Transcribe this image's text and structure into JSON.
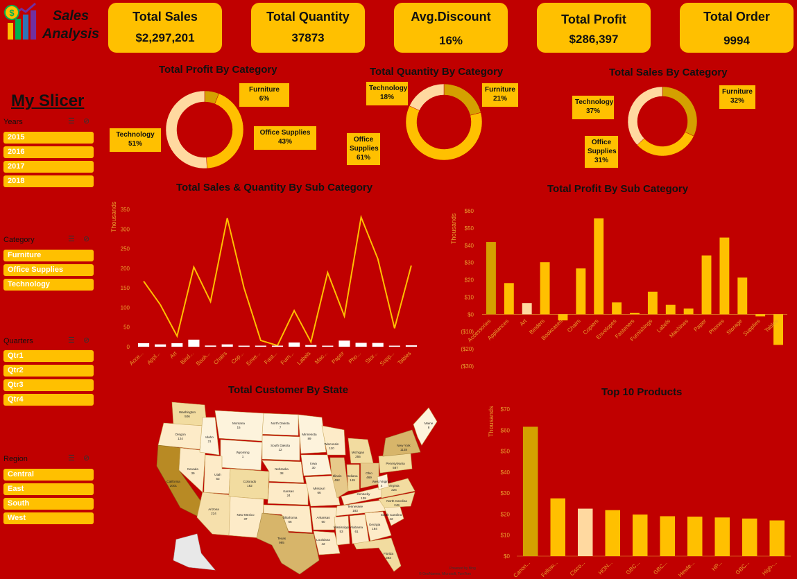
{
  "brand": {
    "line1": "Sales",
    "line2": "Analysis"
  },
  "kpis": [
    {
      "title": "Total Sales",
      "value": "$2,297,201"
    },
    {
      "title": "Total Quantity",
      "value": "37873"
    },
    {
      "title": "Avg.Discount",
      "value": "16%"
    },
    {
      "title": "Total Profit",
      "value": "$286,397"
    },
    {
      "title": "Total Order",
      "value": "9994"
    }
  ],
  "slicer": {
    "heading": "My Slicer",
    "groups": [
      {
        "label": "Years",
        "items": [
          "2015",
          "2016",
          "2017",
          "2018"
        ]
      },
      {
        "label": "Category",
        "items": [
          "Furniture",
          "Office Supplies",
          "Technology"
        ]
      },
      {
        "label": "Quarters",
        "items": [
          "Qtr1",
          "Qtr2",
          "Qtr3",
          "Qtr4"
        ]
      },
      {
        "label": "Region",
        "items": [
          "Central",
          "East",
          "South",
          "West"
        ]
      }
    ]
  },
  "colors": {
    "bg": "#c00000",
    "accent": "#ffc000",
    "dark_gold": "#d4a000",
    "light": "#ffd9a0"
  },
  "chart_data": [
    {
      "type": "pie",
      "title": "Total Profit By Category",
      "categories": [
        "Furniture",
        "Office Supplies",
        "Technology"
      ],
      "values": [
        6,
        43,
        51
      ],
      "labels": [
        {
          "name": "Furniture",
          "pct": "6%"
        },
        {
          "name": "Office Supplies",
          "pct": "43%"
        },
        {
          "name": "Technology",
          "pct": "51%"
        }
      ]
    },
    {
      "type": "pie",
      "title": "Total Quantity By Category",
      "categories": [
        "Furniture",
        "Office Supplies",
        "Technology"
      ],
      "values": [
        21,
        61,
        18
      ],
      "labels": [
        {
          "name": "Furniture",
          "pct": "21%"
        },
        {
          "name": "Office Supplies",
          "pct": "61%"
        },
        {
          "name": "Technology",
          "pct": "18%"
        }
      ]
    },
    {
      "type": "pie",
      "title": "Total Sales By Category",
      "categories": [
        "Furniture",
        "Office Supplies",
        "Technology"
      ],
      "values": [
        32,
        31,
        37
      ],
      "labels": [
        {
          "name": "Furniture",
          "pct": "32%"
        },
        {
          "name": "Office Supplies",
          "pct": "31%"
        },
        {
          "name": "Technology",
          "pct": "37%"
        }
      ]
    },
    {
      "type": "line",
      "title": "Total Sales & Quantity By Sub Category",
      "ylabel": "Thousands",
      "ylim": [
        0,
        350
      ],
      "yticks": [
        "0",
        "50",
        "100",
        "150",
        "200",
        "250",
        "300",
        "350"
      ],
      "categories": [
        "Acce...",
        "Appl...",
        "Art",
        "Bind...",
        "Book...",
        "Chairs",
        "Cop...",
        "Enve...",
        "Fast...",
        "Furn...",
        "Labels",
        "Mac...",
        "Paper",
        "Pho...",
        "Stor...",
        "Supp...",
        "Tables"
      ],
      "series": [
        {
          "values": [
            167,
            107,
            27,
            203,
            115,
            328,
            150,
            16,
            3,
            92,
            12,
            189,
            78,
            330,
            224,
            47,
            207
          ]
        },
        {
          "values": [
            3,
            2,
            3,
            6,
            1,
            2,
            0.2,
            0.9,
            0.9,
            3.6,
            1.4,
            0.4,
            5.2,
            3.3,
            3.2,
            0.7,
            1.2
          ]
        }
      ]
    },
    {
      "type": "bar",
      "title": "Total Profit By Sub Category",
      "ylabel": "Thousands",
      "ylim": [
        -30,
        60
      ],
      "yticks": [
        "$60",
        "$50",
        "$40",
        "$30",
        "$20",
        "$10",
        "$0",
        "($10)",
        "($20)",
        "($30)"
      ],
      "categories": [
        "Accessories",
        "Appliances",
        "Art",
        "Binders",
        "Bookcases",
        "Chairs",
        "Copiers",
        "Envelopes",
        "Fasteners",
        "Furnishings",
        "Labels",
        "Machines",
        "Paper",
        "Phones",
        "Storage",
        "Supplies",
        "Tables"
      ],
      "values": [
        41.9,
        18.1,
        6.5,
        30.2,
        -3.5,
        26.6,
        55.6,
        6.9,
        0.9,
        13.1,
        5.5,
        3.4,
        34.1,
        44.5,
        21.3,
        -1.2,
        -17.7
      ]
    },
    {
      "type": "bar",
      "title": "Top 10 Products",
      "ylabel": "Thousands",
      "ylim": [
        0,
        70
      ],
      "yticks": [
        "$70",
        "$60",
        "$50",
        "$40",
        "$30",
        "$20",
        "$10",
        "$0"
      ],
      "categories": [
        "Canon...",
        "Fellow...",
        "Cisco...",
        "HON...",
        "GBC...",
        "GBC...",
        "Hewle...",
        "HP...",
        "GBC...",
        "High-..."
      ],
      "values": [
        61.6,
        27.5,
        22.6,
        21.9,
        19.8,
        19.0,
        18.8,
        18.4,
        17.9,
        17.0
      ]
    },
    {
      "type": "other",
      "title": "Total Customer By State",
      "footer": "Powered by Bing",
      "footer2": "© GeoNames, Microsoft, TomTom",
      "states": [
        {
          "name": "Washington",
          "value": "506"
        },
        {
          "name": "Oregon",
          "value": "124"
        },
        {
          "name": "California",
          "value": "2001"
        },
        {
          "name": "Nevada",
          "value": "39"
        },
        {
          "name": "Idaho",
          "value": "21"
        },
        {
          "name": "Montana",
          "value": "15"
        },
        {
          "name": "Utah",
          "value": "53"
        },
        {
          "name": "Arizona",
          "value": "224"
        },
        {
          "name": "Wyoming",
          "value": "1"
        },
        {
          "name": "Colorado",
          "value": "182"
        },
        {
          "name": "New Mexico",
          "value": "37"
        },
        {
          "name": "North Dakota",
          "value": "7"
        },
        {
          "name": "South Dakota",
          "value": "12"
        },
        {
          "name": "Nebraska",
          "value": "38"
        },
        {
          "name": "Kansas",
          "value": "24"
        },
        {
          "name": "Oklahoma",
          "value": "66"
        },
        {
          "name": "Texas",
          "value": "985"
        },
        {
          "name": "Minnesota",
          "value": "89"
        },
        {
          "name": "Iowa",
          "value": "30"
        },
        {
          "name": "Missouri",
          "value": "66"
        },
        {
          "name": "Arkansas",
          "value": "60"
        },
        {
          "name": "Louisiana",
          "value": "42"
        },
        {
          "name": "Wisconsin",
          "value": "110"
        },
        {
          "name": "Illinois",
          "value": "492"
        },
        {
          "name": "Michigan",
          "value": "255"
        },
        {
          "name": "Indiana",
          "value": "149"
        },
        {
          "name": "Ohio",
          "value": "469"
        },
        {
          "name": "Kentucky",
          "value": "139"
        },
        {
          "name": "Tennessee",
          "value": "183"
        },
        {
          "name": "Mississippi",
          "value": "53"
        },
        {
          "name": "Alabama",
          "value": "61"
        },
        {
          "name": "Georgia",
          "value": "184"
        },
        {
          "name": "Florida",
          "value": "383"
        },
        {
          "name": "South Carolina",
          "value": "42"
        },
        {
          "name": "North Carolina",
          "value": "249"
        },
        {
          "name": "Virginia",
          "value": "224"
        },
        {
          "name": "West Virginia",
          "value": "4"
        },
        {
          "name": "Pennsylvania",
          "value": "587"
        },
        {
          "name": "New York",
          "value": "1128"
        },
        {
          "name": "Maine",
          "value": "8"
        }
      ]
    }
  ]
}
